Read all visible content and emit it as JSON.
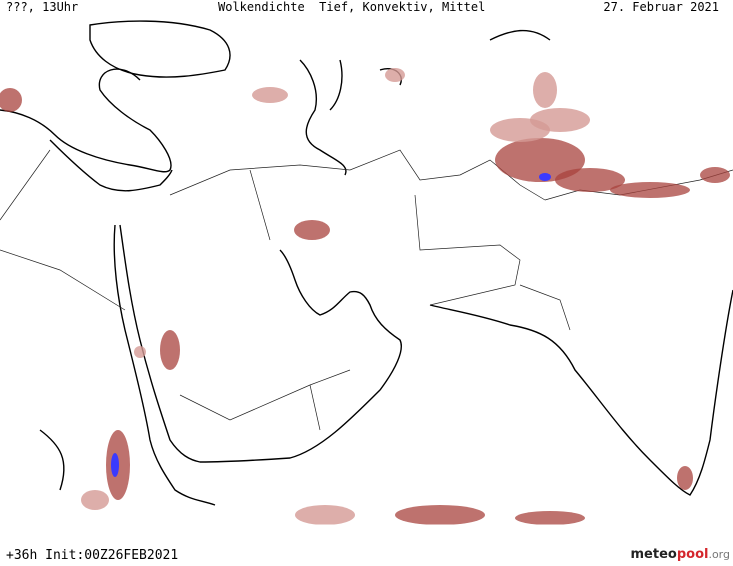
{
  "header": {
    "left": "???, 13Uhr",
    "title": "Wolkendichte  Tief, Konvektiv, Mittel",
    "date": "27. Februar 2021"
  },
  "footer": {
    "run": "+36h Init:00Z26FEB2021",
    "logo": {
      "part1": "meteo",
      "part2": "pool",
      "part3": ".org"
    }
  }
}
